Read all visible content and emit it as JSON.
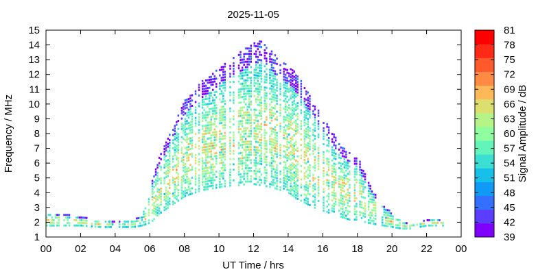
{
  "chart_data": {
    "type": "heatmap",
    "title": "2025-11-05",
    "xlabel": "UT Time / hrs",
    "ylabel": "Frequency / MHz",
    "colorbar_label": "Signal Amplitude / dB",
    "xlim": [
      0,
      24
    ],
    "ylim": [
      1,
      15
    ],
    "x_ticks": [
      "00",
      "02",
      "04",
      "06",
      "08",
      "10",
      "12",
      "14",
      "16",
      "18",
      "20",
      "22",
      "00"
    ],
    "y_ticks": [
      "1",
      "2",
      "3",
      "4",
      "5",
      "6",
      "7",
      "8",
      "9",
      "10",
      "11",
      "12",
      "13",
      "14",
      "15"
    ],
    "colorbar": {
      "ticks": [
        "39",
        "42",
        "45",
        "48",
        "51",
        "54",
        "57",
        "60",
        "63",
        "66",
        "69",
        "72",
        "75",
        "78",
        "81"
      ],
      "range": [
        39,
        81
      ],
      "colors": [
        "#8000ff",
        "#5a3dff",
        "#3470ff",
        "#0f9bf5",
        "#17c0e8",
        "#3cdfd3",
        "#62f4bb",
        "#8ffe9f",
        "#b5f486",
        "#dcde6e",
        "#ffb857",
        "#ff8a44",
        "#ff5a2c",
        "#ff2a16",
        "#ff0000"
      ]
    },
    "profile": {
      "description_units": "UT hours vs MHz",
      "hours": [
        0,
        1,
        2,
        3,
        4,
        5,
        5.5,
        6,
        6.5,
        7,
        7.5,
        8,
        8.5,
        9,
        9.5,
        10,
        10.5,
        11,
        11.5,
        12,
        12.5,
        13,
        13.5,
        14,
        14.5,
        15,
        15.5,
        16,
        16.5,
        17,
        17.5,
        18,
        18.5,
        19,
        19.5,
        20,
        20.5,
        21,
        21.5,
        22,
        22.5,
        23
      ],
      "lower_mhz": [
        1.8,
        1.8,
        1.8,
        1.7,
        1.7,
        1.7,
        1.8,
        2.0,
        2.6,
        3.0,
        3.4,
        3.8,
        4.0,
        4.2,
        4.3,
        4.4,
        4.5,
        4.5,
        4.6,
        4.6,
        4.5,
        4.4,
        4.2,
        4.0,
        3.6,
        3.3,
        3.0,
        2.8,
        2.6,
        2.4,
        2.2,
        2.2,
        2.0,
        1.9,
        1.8,
        1.7,
        1.6,
        1.6,
        1.7,
        1.8,
        1.8,
        1.8
      ],
      "upper_mhz": [
        2.7,
        2.6,
        2.4,
        2.2,
        2.1,
        2.2,
        2.5,
        4.5,
        6.5,
        7.8,
        9.0,
        10.3,
        11.0,
        11.6,
        12.0,
        12.5,
        13.0,
        13.4,
        13.8,
        14.2,
        14.3,
        13.6,
        13.0,
        12.6,
        12.0,
        11.0,
        10.0,
        9.0,
        8.2,
        7.2,
        6.8,
        6.4,
        5.0,
        4.0,
        3.2,
        2.6,
        2.2,
        1.9,
        2.0,
        2.2,
        2.3,
        2.0
      ],
      "peak_amplitude_db": 69,
      "typical_amplitude_db": 55
    }
  }
}
